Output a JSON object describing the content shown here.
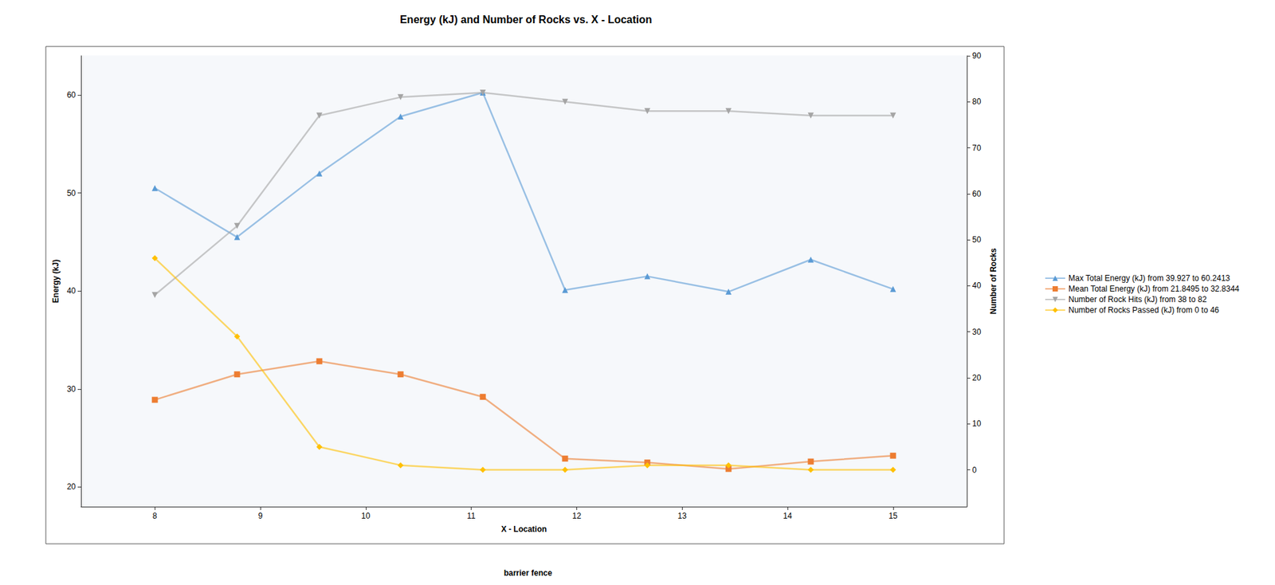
{
  "chart_data": {
    "type": "line",
    "title": "Energy (kJ) and Number of Rocks vs. X - Location",
    "subtitle": "barrier fence",
    "x_label": "X - Location",
    "y_label": "Energy (kJ)",
    "y2_label": "Number of Rocks",
    "x": [
      8,
      8.78,
      9.56,
      10.33,
      11.11,
      11.89,
      12.67,
      13.44,
      14.22,
      15
    ],
    "xlim": [
      7.3,
      15.7
    ],
    "xticks": [
      8,
      9,
      10,
      11,
      12,
      13,
      14,
      15
    ],
    "ylim": [
      18,
      64
    ],
    "yticks": [
      20,
      30,
      40,
      50,
      60
    ],
    "y2lim": [
      -8,
      90
    ],
    "y2ticks": [
      0,
      10,
      20,
      30,
      40,
      50,
      60,
      70,
      80,
      90
    ],
    "grid": false,
    "legend": "right",
    "series": [
      {
        "name": "Max Total Energy (kJ) from 39.927 to 60.2413",
        "color": "#5b9bd5",
        "marker": "triangle",
        "values": [
          50.5,
          45.5,
          52.0,
          57.8,
          60.2413,
          40.1,
          41.5,
          39.927,
          43.2,
          40.2
        ]
      },
      {
        "name": "Mean Total Energy (kJ) from 21.8495 to 32.8344",
        "color": "#ed7d31",
        "marker": "square",
        "values": [
          28.9,
          31.5,
          32.8344,
          31.5,
          29.2,
          22.9,
          22.5,
          21.8495,
          22.6,
          23.2
        ]
      },
      {
        "name": "Number of Rock Hits (kJ) from 38 to 82",
        "color": "#a5a5a5",
        "marker": "triangle-down",
        "axis": "y2",
        "values": [
          38,
          53,
          77,
          81,
          82,
          80,
          78,
          78,
          77,
          77
        ]
      },
      {
        "name": "Number of Rocks Passed (kJ) from 0 to 46",
        "color": "#ffc000",
        "marker": "diamond",
        "axis": "y2",
        "values": [
          46,
          29,
          5,
          1,
          0,
          0,
          1,
          1,
          0,
          0
        ]
      }
    ]
  }
}
